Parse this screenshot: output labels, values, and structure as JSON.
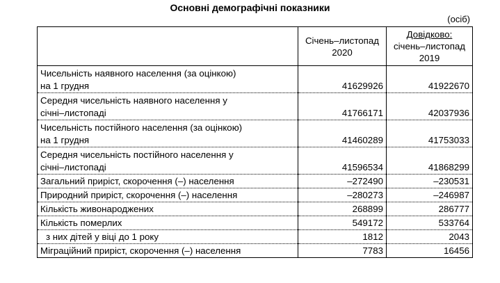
{
  "title": "Основні демографічні показники",
  "units": "(осіб)",
  "columns": {
    "current": [
      "Січень–листопад",
      "2020"
    ],
    "previous": [
      "Довідково:",
      "січень–листопад",
      "2019"
    ]
  },
  "rows": [
    {
      "label": [
        "Чисельність наявного населення (за оцінкою)",
        "на 1 грудня"
      ],
      "v2020": "41629926",
      "v2019": "41922670"
    },
    {
      "label": [
        "Середня чисельність наявного населення у",
        "січні–листопаді"
      ],
      "v2020": "41766171",
      "v2019": "42037936"
    },
    {
      "label": [
        "Чисельність постійного населення  (за оцінкою)",
        "на 1 грудня"
      ],
      "v2020": "41460289",
      "v2019": "41753033"
    },
    {
      "label": [
        "Середня чисельність постійного населення у",
        "січні–листопаді"
      ],
      "v2020": "41596534",
      "v2019": "41868299"
    },
    {
      "label": [
        "Загальний приріст, скорочення (–) населення"
      ],
      "v2020": "–272490",
      "v2019": "–230531"
    },
    {
      "label": [
        "Природний приріст, скорочення (–) населення"
      ],
      "v2020": "–280273",
      "v2019": "–246987"
    },
    {
      "label": [
        "Кількість живонароджених"
      ],
      "v2020": "268899",
      "v2019": "286777"
    },
    {
      "label": [
        "Кількість померлих"
      ],
      "v2020": "549172",
      "v2019": "533764"
    },
    {
      "label": [
        "з них дітей у віці до 1 року"
      ],
      "v2020": "1812",
      "v2019": "2043"
    },
    {
      "label": [
        "Міграційний приріст, скорочення (–) населення"
      ],
      "v2020": "7783",
      "v2019": "16456"
    }
  ]
}
